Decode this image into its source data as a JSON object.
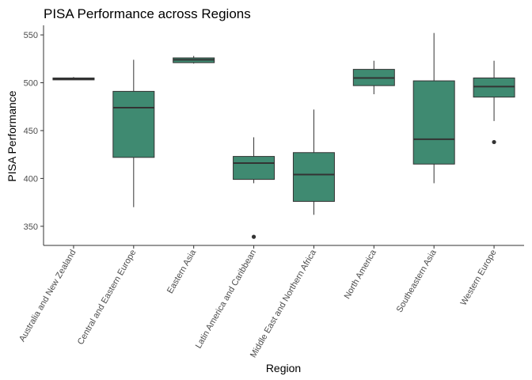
{
  "chart_data": {
    "type": "box",
    "title": "PISA Performance across Regions",
    "xlabel": "Region",
    "ylabel": "PISA Performance",
    "ylim": [
      330,
      560
    ],
    "yticks": [
      350,
      400,
      450,
      500,
      550
    ],
    "grid": false,
    "legend": "none",
    "colors": {
      "box_fill": "#3f8a71",
      "line": "#333333",
      "axis": "#333333",
      "tick_text": "#4d4d4d"
    },
    "categories": [
      "Australia and New Zealand",
      "Central and Eastern Europe",
      "Eastern Asia",
      "Latin America and Caribbean",
      "Middle East and Northern Africa",
      "North America",
      "Southeastern Asia",
      "Western Europe"
    ],
    "boxes": [
      {
        "min": 503,
        "q1": 503,
        "median": 504,
        "q3": 505,
        "max": 506,
        "outliers": []
      },
      {
        "min": 370,
        "q1": 422,
        "median": 474,
        "q3": 491,
        "max": 524,
        "outliers": []
      },
      {
        "min": 520,
        "q1": 521,
        "median": 524,
        "q3": 526,
        "max": 528,
        "outliers": []
      },
      {
        "min": 395,
        "q1": 399,
        "median": 416,
        "q3": 423,
        "max": 443,
        "outliers": [
          339
        ]
      },
      {
        "min": 362,
        "q1": 376,
        "median": 404,
        "q3": 427,
        "max": 472,
        "outliers": []
      },
      {
        "min": 488,
        "q1": 497,
        "median": 505,
        "q3": 514,
        "max": 523,
        "outliers": []
      },
      {
        "min": 395,
        "q1": 415,
        "median": 441,
        "q3": 502,
        "max": 552,
        "outliers": []
      },
      {
        "min": 460,
        "q1": 485,
        "median": 496,
        "q3": 505,
        "max": 523,
        "outliers": [
          438
        ]
      }
    ]
  }
}
